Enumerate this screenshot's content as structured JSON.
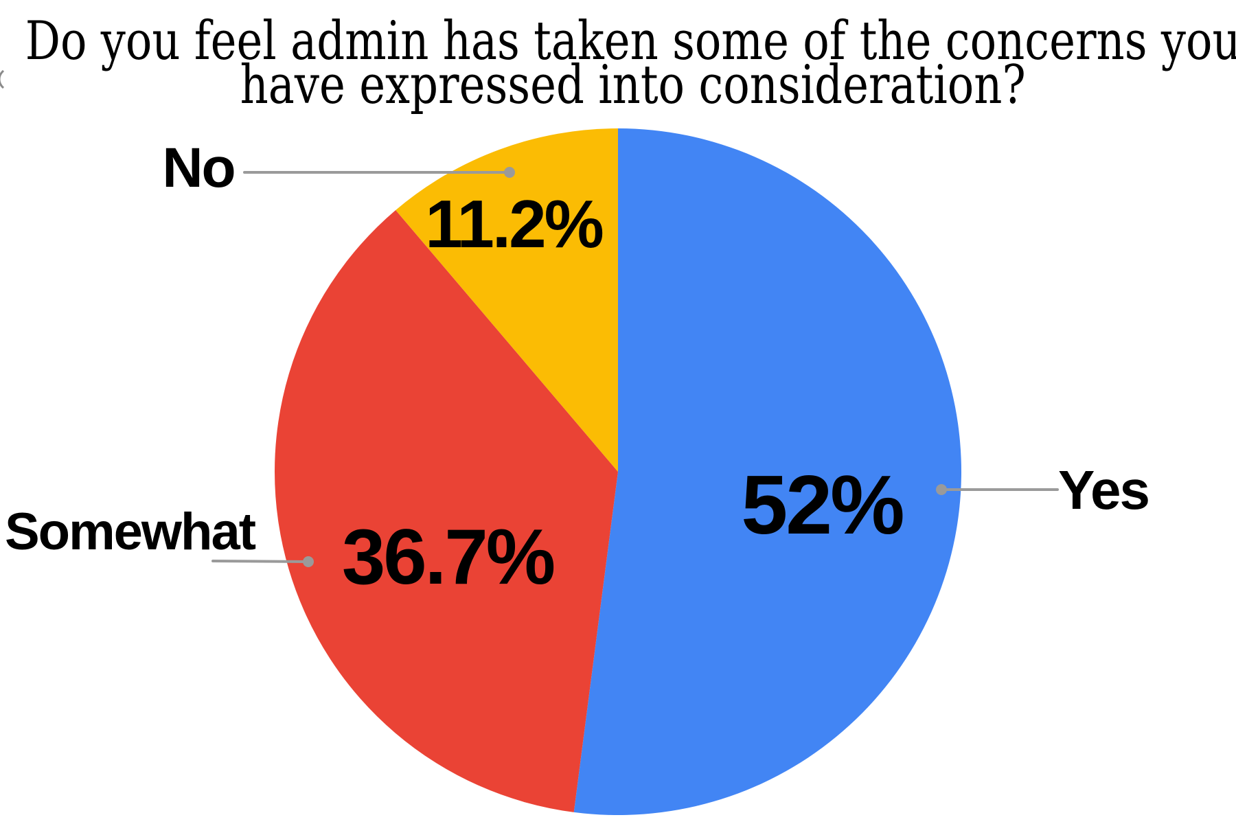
{
  "page": {
    "background": "#ffffff"
  },
  "title": {
    "line1": "Do you feel admin has taken some of the concerns you",
    "line2": "have expressed into consideration?"
  },
  "chart_data": {
    "type": "pie",
    "title": "Do you feel admin has taken some of the concerns you have expressed into consideration?",
    "categories": [
      "Yes",
      "Somewhat",
      "No"
    ],
    "values": [
      52,
      36.7,
      11.2
    ],
    "display_values": [
      "52%",
      "36.7%",
      "11.2%"
    ],
    "colors": [
      "#4285F4",
      "#EA4335",
      "#FBBC04"
    ],
    "start_angle_deg": 0,
    "direction": "clockwise",
    "legend_position": "outside-callouts",
    "leader_line_color": "#9a9a9a",
    "label_color": "#000000"
  }
}
